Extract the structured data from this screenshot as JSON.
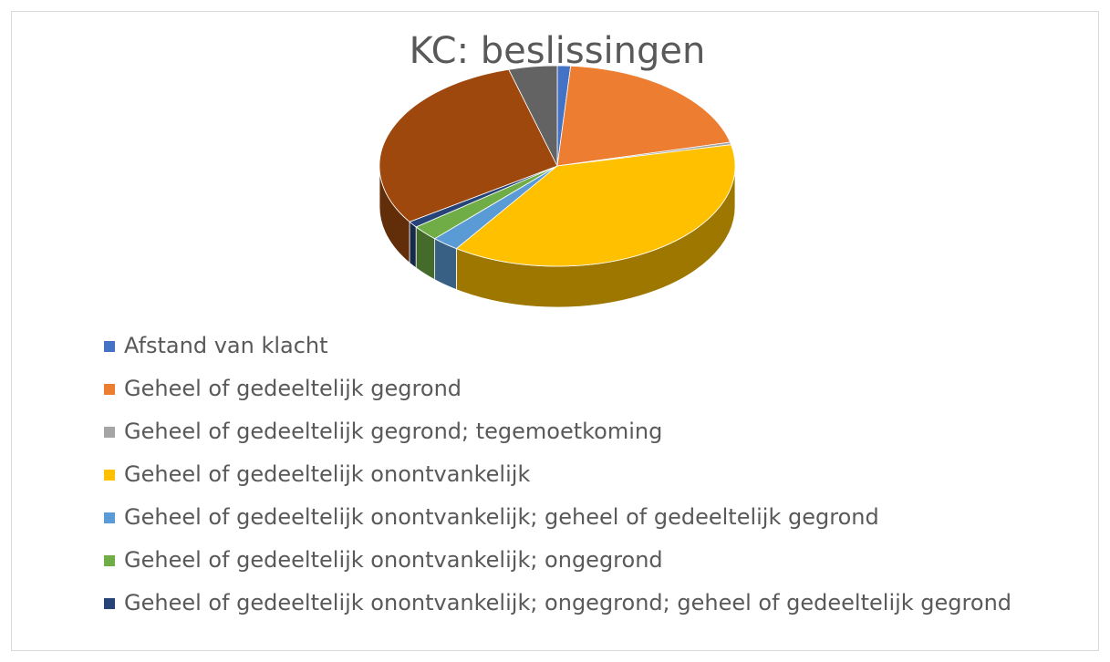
{
  "chart_data": {
    "type": "pie",
    "title": "KC: beslissingen",
    "categories": [
      "Afstand van klacht",
      "Geheel of gedeeltelijk gegrond",
      "Geheel of gedeeltelijk gegrond; tegemoetkoming",
      "Geheel of gedeeltelijk onontvankelijk",
      "Geheel of gedeeltelijk onontvankelijk; geheel of gedeeltelijk gegrond",
      "Geheel of gedeeltelijk onontvankelijk; ongegrond",
      "Geheel of gedeeltelijk onontvankelijk; ongegrond; geheel of gedeeltelijk gegrond",
      null,
      null
    ],
    "values": [
      1.2,
      20,
      0.4,
      38,
      2.5,
      2.5,
      1,
      30,
      4.4
    ],
    "colors": [
      "#4472c4",
      "#ed7d31",
      "#a5a5a5",
      "#ffc000",
      "#5b9bd5",
      "#70ad47",
      "#264478",
      "#9e480e",
      "#636363"
    ],
    "legend": "bottom-left"
  }
}
